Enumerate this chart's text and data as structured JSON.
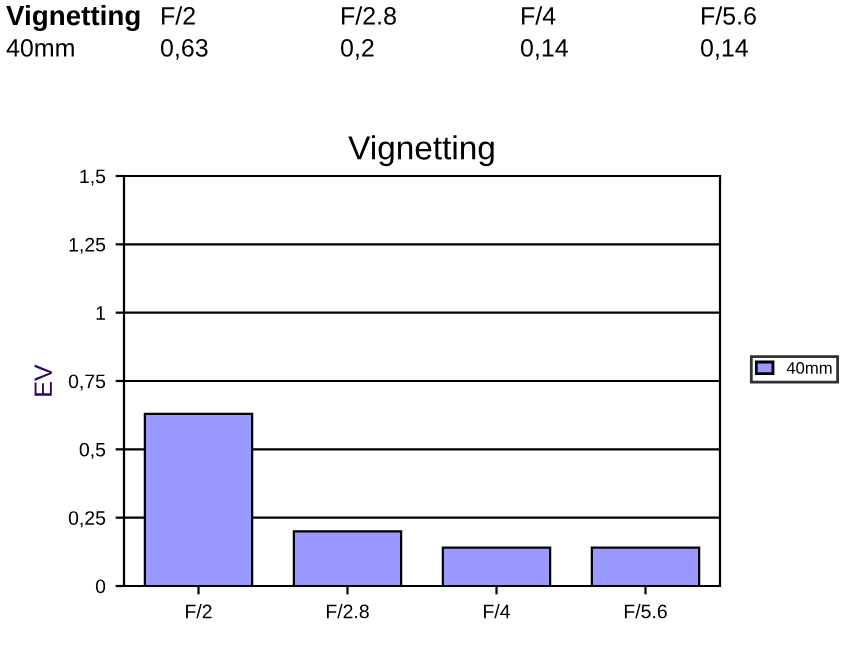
{
  "chart_data": {
    "type": "bar",
    "title": "Vignetting",
    "ylabel": "EV",
    "categories": [
      "F/2",
      "F/2.8",
      "F/4",
      "F/5.6"
    ],
    "series": [
      {
        "name": "40mm",
        "color": "#9999ff",
        "values": [
          0.63,
          0.2,
          0.14,
          0.14
        ],
        "value_labels": [
          "0,63",
          "0,2",
          "0,14",
          "0,14"
        ]
      }
    ],
    "ylim": [
      0,
      1.5
    ],
    "yticks": [
      0,
      {
        "value": 0.25,
        "label": "0,25"
      },
      {
        "value": 0.5,
        "label": "0,5"
      },
      {
        "value": 0.75,
        "label": "0,75"
      },
      1,
      {
        "value": 1.25,
        "label": "1,25"
      },
      {
        "value": 1.5,
        "label": "1,5"
      }
    ],
    "grid": "y",
    "legend": "right"
  }
}
